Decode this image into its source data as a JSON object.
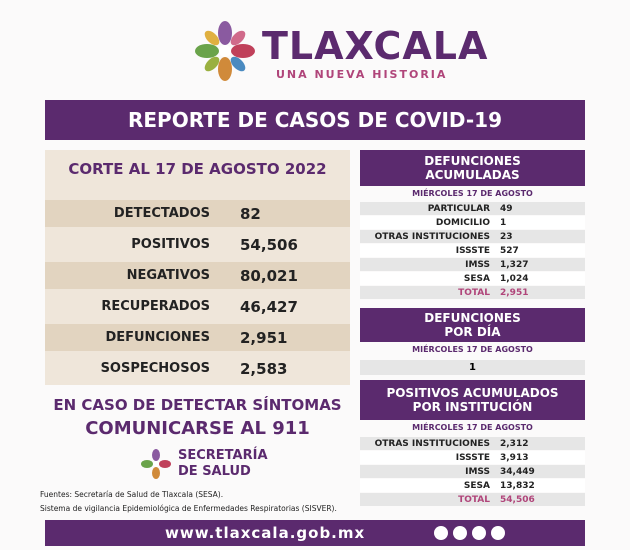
{
  "header": {
    "title": "TLAXCALA",
    "subtitle": "UNA NUEVA HISTORIA"
  },
  "banner": "REPORTE DE CASOS DE COVID-19",
  "summary": {
    "heading": "CORTE AL 17 DE AGOSTO 2022",
    "rows": [
      [
        "DETECTADOS",
        "82"
      ],
      [
        "POSITIVOS",
        "54,506"
      ],
      [
        "NEGATIVOS",
        "80,021"
      ],
      [
        "RECUPERADOS",
        "46,427"
      ],
      [
        "DEFUNCIONES",
        "2,951"
      ],
      [
        "SOSPECHOSOS",
        "2,583"
      ]
    ]
  },
  "deaths_total": {
    "heading": [
      "DEFUNCIONES",
      "ACUMULADAS"
    ],
    "date": "MIÉRCOLES 17 DE AGOSTO",
    "rows": [
      [
        "PARTICULAR",
        "49"
      ],
      [
        "DOMICILIO",
        "1"
      ],
      [
        "OTRAS INSTITUCIONES",
        "23"
      ],
      [
        "ISSSTE",
        "527"
      ],
      [
        "IMSS",
        "1,327"
      ],
      [
        "SESA",
        "1,024"
      ],
      [
        "TOTAL",
        "2,951"
      ]
    ]
  },
  "deaths_day": {
    "heading": [
      "DEFUNCIONES",
      "POR DÍA"
    ],
    "date": "MIÉRCOLES 17 DE AGOSTO",
    "value": "1"
  },
  "positives": {
    "heading": [
      "POSITIVOS ACUMULADOS",
      "POR INSTITUCIÓN"
    ],
    "date": "MIÉRCOLES 17 DE AGOSTO",
    "rows": [
      [
        "OTRAS INSTITUCIONES",
        "2,312"
      ],
      [
        "ISSSTE",
        "3,913"
      ],
      [
        "IMSS",
        "34,449"
      ],
      [
        "SESA",
        "13,832"
      ],
      [
        "TOTAL",
        "54,506"
      ]
    ]
  },
  "call": [
    "EN CASO DE DETECTAR SÍNTOMAS",
    "COMUNICARSE AL 911"
  ],
  "secretaria": [
    "SECRETARÍA",
    "DE SALUD"
  ],
  "sources": [
    "Fuentes:  Secretaría de Salud de Tlaxcala (SESA).",
    "Sistema de vigilancia Epidemiológica de Enfermedades Respiratorias (SISVER)."
  ],
  "footer": "www.tlaxcala.gob.mx"
}
